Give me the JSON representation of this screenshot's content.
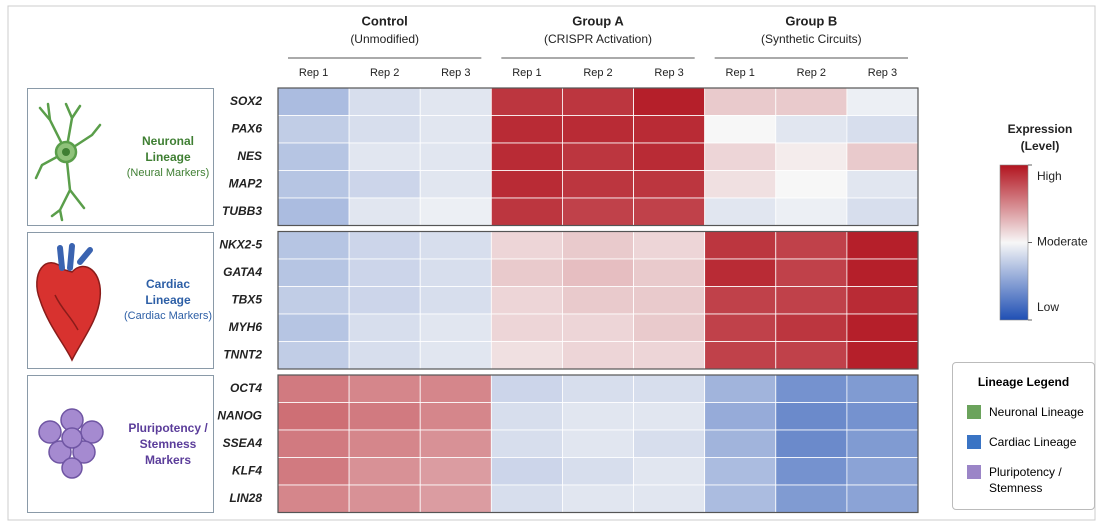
{
  "chart_data": {
    "type": "heatmap",
    "column_groups": [
      {
        "name": "Control",
        "subtitle": "(Unmodified)",
        "columns": [
          "Rep 1",
          "Rep 2",
          "Rep 3"
        ]
      },
      {
        "name": "Group A",
        "subtitle": "(CRISPR Activation)",
        "columns": [
          "Rep 1",
          "Rep 2",
          "Rep 3"
        ]
      },
      {
        "name": "Group B",
        "subtitle": "(Synthetic Circuits)",
        "columns": [
          "Rep 1",
          "Rep 2",
          "Rep 3"
        ]
      }
    ],
    "row_groups": [
      {
        "name": "Neuronal Lineage",
        "subtitle": "(Neural Markers)",
        "color": "#3f7f33",
        "rows": [
          "SOX2",
          "PAX6",
          "NES",
          "MAP2",
          "TUBB3"
        ]
      },
      {
        "name": "Cardiac Lineage",
        "subtitle": "(Cardiac Markers)",
        "color": "#2d5fa6",
        "rows": [
          "NKX2-5",
          "GATA4",
          "TBX5",
          "MYH6",
          "TNNT2"
        ]
      },
      {
        "name": "Pluripotency / Stemness Markers",
        "color": "#5b3d9a",
        "rows": [
          "OCT4",
          "NANOG",
          "SSEA4",
          "KLF4",
          "LIN28"
        ]
      }
    ],
    "values": [
      [
        -0.35,
        -0.15,
        -0.1,
        0.85,
        0.85,
        0.95,
        0.2,
        0.2,
        -0.05
      ],
      [
        -0.25,
        -0.15,
        -0.1,
        0.9,
        0.9,
        0.9,
        0.0,
        -0.1,
        -0.15
      ],
      [
        -0.3,
        -0.1,
        -0.1,
        0.9,
        0.85,
        0.9,
        0.15,
        0.05,
        0.2
      ],
      [
        -0.3,
        -0.2,
        -0.1,
        0.9,
        0.85,
        0.85,
        0.1,
        0.0,
        -0.1
      ],
      [
        -0.35,
        -0.1,
        -0.05,
        0.85,
        0.8,
        0.8,
        -0.1,
        -0.05,
        -0.15
      ],
      [
        -0.3,
        -0.2,
        -0.15,
        0.15,
        0.2,
        0.15,
        0.85,
        0.8,
        0.95
      ],
      [
        -0.3,
        -0.2,
        -0.15,
        0.2,
        0.25,
        0.2,
        0.9,
        0.8,
        0.95
      ],
      [
        -0.25,
        -0.2,
        -0.15,
        0.15,
        0.2,
        0.2,
        0.8,
        0.8,
        0.9
      ],
      [
        -0.3,
        -0.15,
        -0.1,
        0.15,
        0.15,
        0.2,
        0.8,
        0.85,
        0.95
      ],
      [
        -0.25,
        -0.15,
        -0.1,
        0.1,
        0.15,
        0.15,
        0.8,
        0.8,
        0.95
      ],
      [
        0.55,
        0.5,
        0.5,
        -0.2,
        -0.15,
        -0.15,
        -0.4,
        -0.6,
        -0.55
      ],
      [
        0.6,
        0.55,
        0.5,
        -0.15,
        -0.1,
        -0.1,
        -0.45,
        -0.65,
        -0.6
      ],
      [
        0.55,
        0.5,
        0.45,
        -0.15,
        -0.1,
        -0.15,
        -0.4,
        -0.65,
        -0.55
      ],
      [
        0.55,
        0.45,
        0.4,
        -0.2,
        -0.15,
        -0.1,
        -0.35,
        -0.6,
        -0.5
      ],
      [
        0.5,
        0.45,
        0.4,
        -0.15,
        -0.1,
        -0.1,
        -0.35,
        -0.55,
        -0.5
      ]
    ],
    "colorbar": {
      "title": "Expression",
      "subtitle": "(Level)",
      "zlim": [
        -1,
        1
      ],
      "colors": {
        "low": "#1f4fb4",
        "mid": "#f7f7f7",
        "high": "#b2141f"
      },
      "ticks": [
        {
          "value": 1,
          "label": "High"
        },
        {
          "value": 0,
          "label": "Moderate"
        },
        {
          "value": -1,
          "label": "Low"
        }
      ]
    },
    "lineage_legend": {
      "title": "Lineage Legend",
      "items": [
        {
          "label": "Neuronal Lineage",
          "color": "#6ba35c"
        },
        {
          "label": "Cardiac Lineage",
          "color": "#3a74c4"
        },
        {
          "label": "Pluripotency / Stemness",
          "color": "#9b85c7"
        }
      ]
    }
  }
}
